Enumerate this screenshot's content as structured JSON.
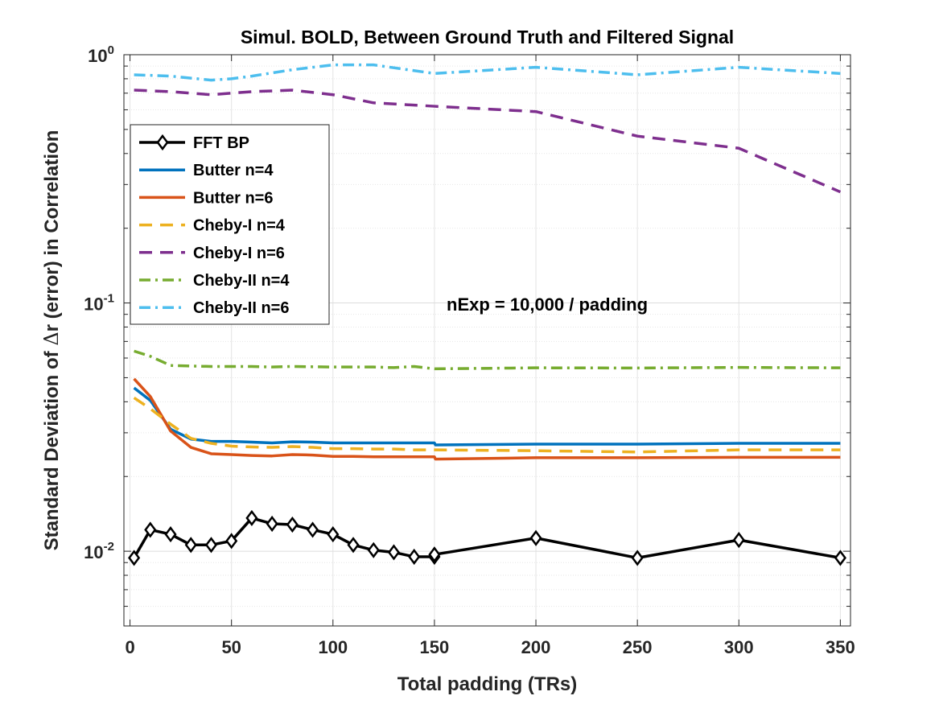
{
  "chart_data": {
    "type": "line",
    "title": "Simul. BOLD, Between Ground Truth and Filtered Signal",
    "xlabel": "Total padding (TRs)",
    "ylabel_pre": "Standard Deviation of ",
    "ylabel_delta": "Δ",
    "ylabel_post": "r (error) in Correlation",
    "annotation": "nExp = 10,000 / padding",
    "yscale": "log",
    "xlim": [
      -3,
      355
    ],
    "ylim": [
      0.005,
      1
    ],
    "grid": true,
    "legend_position": "upper-left",
    "xticks": [
      0,
      50,
      100,
      150,
      200,
      250,
      300,
      350
    ],
    "xtick_labels": [
      "0",
      "50",
      "100",
      "150",
      "200",
      "250",
      "300",
      "350"
    ],
    "yticks": [
      {
        "value": 1,
        "base": "10",
        "exp": "0"
      },
      {
        "value": 0.1,
        "base": "10",
        "exp": "-1"
      },
      {
        "value": 0.01,
        "base": "10",
        "exp": "-2"
      }
    ],
    "series": [
      {
        "name": "FFT BP",
        "color": "#000000",
        "dash": "solid",
        "marker": "diamond",
        "x": [
          2,
          10,
          20,
          30,
          40,
          50,
          60,
          70,
          80,
          90,
          100,
          110,
          120,
          130,
          140,
          150,
          150,
          200,
          250,
          300,
          350
        ],
        "y": [
          0.0094,
          0.0122,
          0.0117,
          0.0106,
          0.0106,
          0.011,
          0.0136,
          0.0129,
          0.0128,
          0.0122,
          0.0117,
          0.0106,
          0.0101,
          0.0099,
          0.0095,
          0.0095,
          0.0097,
          0.0113,
          0.0094,
          0.0111,
          0.0094
        ]
      },
      {
        "name": "Butter n=4",
        "color": "#0072BD",
        "dash": "solid",
        "marker": "none",
        "x": [
          2,
          10,
          20,
          30,
          40,
          50,
          60,
          70,
          80,
          90,
          100,
          110,
          120,
          130,
          140,
          150,
          150.5,
          200,
          250,
          300,
          350
        ],
        "y": [
          0.0455,
          0.0405,
          0.031,
          0.0283,
          0.0277,
          0.0277,
          0.0275,
          0.0273,
          0.0276,
          0.0275,
          0.0273,
          0.0273,
          0.0273,
          0.0273,
          0.0273,
          0.0273,
          0.0268,
          0.027,
          0.027,
          0.0272,
          0.0272
        ]
      },
      {
        "name": "Butter n=6",
        "color": "#D95319",
        "dash": "solid",
        "marker": "none",
        "x": [
          2,
          10,
          20,
          30,
          40,
          50,
          60,
          70,
          80,
          90,
          100,
          110,
          120,
          130,
          140,
          150,
          150.5,
          200,
          250,
          300,
          350
        ],
        "y": [
          0.0495,
          0.042,
          0.0305,
          0.0262,
          0.0247,
          0.0245,
          0.0243,
          0.0242,
          0.0245,
          0.0244,
          0.0241,
          0.0241,
          0.024,
          0.024,
          0.024,
          0.024,
          0.0235,
          0.0238,
          0.0238,
          0.0239,
          0.0239
        ]
      },
      {
        "name": "Cheby-I n=4",
        "color": "#EDB120",
        "dash": "dash",
        "marker": "none",
        "x": [
          2,
          10,
          20,
          30,
          40,
          50,
          60,
          70,
          80,
          90,
          100,
          110,
          120,
          130,
          140,
          150,
          200,
          250,
          300,
          350
        ],
        "y": [
          0.0415,
          0.0375,
          0.0325,
          0.0285,
          0.0272,
          0.0265,
          0.0263,
          0.0262,
          0.0264,
          0.0262,
          0.0259,
          0.0259,
          0.0258,
          0.0258,
          0.0256,
          0.0256,
          0.0254,
          0.0251,
          0.0256,
          0.0256
        ]
      },
      {
        "name": "Cheby-I n=6",
        "color": "#7E2F8E",
        "dash": "dash",
        "marker": "none",
        "x": [
          2,
          20,
          40,
          60,
          80,
          100,
          120,
          150,
          200,
          250,
          300,
          350
        ],
        "y": [
          0.72,
          0.71,
          0.69,
          0.71,
          0.72,
          0.69,
          0.64,
          0.62,
          0.59,
          0.47,
          0.42,
          0.28
        ]
      },
      {
        "name": "Cheby-II n=4",
        "color": "#77AC30",
        "dash": "dashdot",
        "marker": "none",
        "x": [
          2,
          10,
          20,
          30,
          40,
          60,
          70,
          80,
          100,
          120,
          130,
          140,
          150,
          200,
          250,
          300,
          350
        ],
        "y": [
          0.064,
          0.061,
          0.056,
          0.0557,
          0.0555,
          0.0555,
          0.0552,
          0.0555,
          0.0552,
          0.0552,
          0.0549,
          0.0555,
          0.0543,
          0.0548,
          0.0547,
          0.055,
          0.0548
        ]
      },
      {
        "name": "Cheby-II n=6",
        "color": "#4DBEEE",
        "dash": "dashdot",
        "marker": "none",
        "x": [
          2,
          20,
          40,
          50,
          60,
          80,
          100,
          120,
          150,
          200,
          250,
          300,
          350
        ],
        "y": [
          0.83,
          0.82,
          0.79,
          0.8,
          0.82,
          0.87,
          0.91,
          0.91,
          0.84,
          0.89,
          0.83,
          0.89,
          0.84
        ]
      }
    ]
  }
}
